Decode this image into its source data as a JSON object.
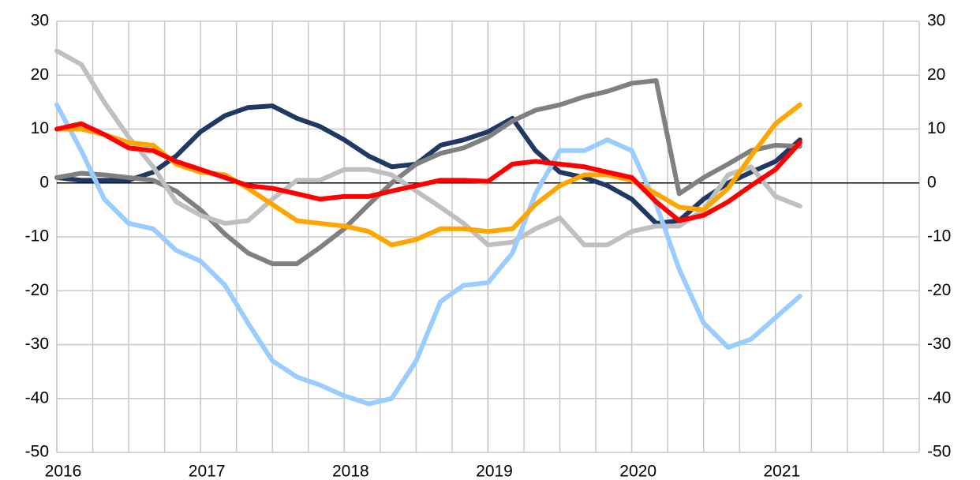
{
  "chart_data": {
    "type": "line",
    "x": [
      2016,
      2016.17,
      2016.33,
      2016.5,
      2016.67,
      2016.83,
      2017,
      2017.17,
      2017.33,
      2017.5,
      2017.67,
      2017.83,
      2018,
      2018.17,
      2018.33,
      2018.5,
      2018.67,
      2018.83,
      2019,
      2019.17,
      2019.33,
      2019.5,
      2019.67,
      2019.83,
      2020,
      2020.17,
      2020.33,
      2020.5,
      2020.67,
      2020.83,
      2021,
      2021.17
    ],
    "series": [
      {
        "color": "#1f3864",
        "values": [
          1,
          0.5,
          0.5,
          0.5,
          2,
          5,
          9.5,
          12.5,
          14,
          14.3,
          12,
          10.5,
          8,
          5,
          3,
          3.5,
          7,
          8,
          9.5,
          12,
          6,
          2,
          1,
          -0.5,
          -3,
          -7.5,
          -7,
          -3,
          0,
          2,
          4,
          8
        ]
      },
      {
        "color": "#808080",
        "values": [
          1,
          1.8,
          1.5,
          1,
          0.5,
          -1.5,
          -5,
          -9.5,
          -13,
          -15,
          -15,
          -12,
          -8.5,
          -4,
          0,
          3.5,
          5.5,
          6.5,
          8.5,
          11.5,
          13.5,
          14.5,
          16,
          17,
          18.5,
          19,
          -2,
          1,
          3.5,
          6,
          7,
          6.8
        ]
      },
      {
        "color": "#bfbfbf",
        "values": [
          24.5,
          22,
          15,
          8.5,
          3,
          -3.5,
          -6,
          -7.5,
          -7,
          -3,
          0.5,
          0.5,
          2.5,
          2.5,
          1.5,
          -1.5,
          -4.5,
          -7.5,
          -11.5,
          -11,
          -8.5,
          -6.5,
          -11.5,
          -11.5,
          -9,
          -8,
          -8,
          -5,
          1.5,
          3,
          -2.5,
          -4.3
        ]
      },
      {
        "color": "#99ccff",
        "values": [
          14.5,
          6,
          -3,
          -7.5,
          -8.5,
          -12.5,
          -14.5,
          -19,
          -26,
          -33,
          -36,
          -37.5,
          -39.5,
          -41,
          -40,
          -33,
          -22,
          -19,
          -18.5,
          -13,
          -2,
          6,
          6,
          8,
          6,
          -4,
          -16,
          -26,
          -30.5,
          -29,
          -25,
          -21
        ]
      },
      {
        "color": "#ffa500",
        "values": [
          10,
          10,
          9,
          7.5,
          7,
          3.5,
          2,
          1.5,
          -1,
          -4,
          -7,
          -7.5,
          -8,
          -9,
          -11.5,
          -10.5,
          -8.5,
          -8.5,
          -9,
          -8.5,
          -4,
          -0.5,
          1.5,
          1.5,
          0.5,
          -2,
          -4.5,
          -5,
          -1,
          5,
          11,
          14.5
        ]
      },
      {
        "color": "#ff0000",
        "values": [
          10,
          11,
          9,
          6.5,
          6,
          4,
          2.5,
          1,
          -0.5,
          -1,
          -2,
          -3,
          -2.5,
          -2.5,
          -1.5,
          -0.5,
          0.5,
          0.5,
          0.3,
          3.5,
          4,
          3.5,
          3,
          2,
          1,
          -3.5,
          -7,
          -6,
          -3.5,
          -0.5,
          2.5,
          7.5
        ]
      }
    ],
    "xlim": [
      2016,
      2022
    ],
    "xticks": [
      2016,
      2017,
      2018,
      2019,
      2020,
      2021
    ],
    "ylim": [
      -50,
      30
    ],
    "yticks": [
      -50,
      -40,
      -30,
      -20,
      -10,
      0,
      10,
      20,
      30
    ],
    "y2lim": [
      -50,
      30
    ],
    "y2ticks": [
      -50,
      -40,
      -30,
      -20,
      -10,
      0,
      10,
      20,
      30
    ],
    "grid": true
  }
}
